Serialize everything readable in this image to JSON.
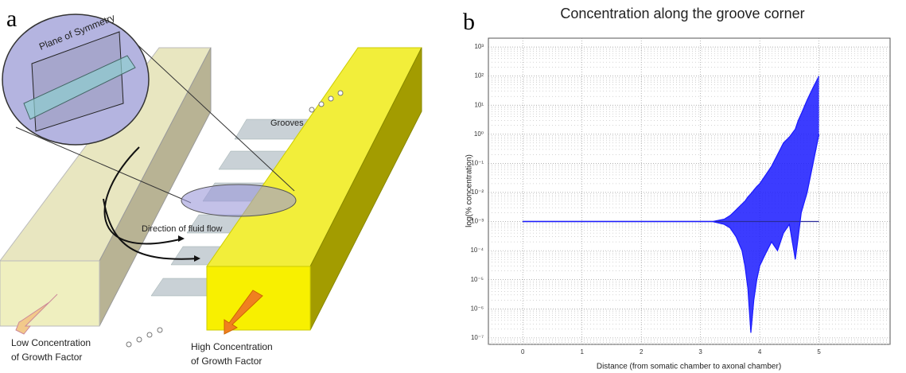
{
  "panel_a": {
    "label": "a",
    "plane_label": "Plane of Symmetry",
    "grooves_label": "Grooves",
    "flow_label": "Direction of fluid flow",
    "low_label": [
      "Low Concentration",
      "of Growth Factor"
    ],
    "high_label": [
      "High Concentration",
      "of Growth Factor"
    ]
  },
  "chart_data": {
    "type": "line",
    "label": "b",
    "title": "Concentration along the groove corner",
    "x_label": "Distance (from somatic chamber to axonal chamber)",
    "y_label": "log(% concentration)",
    "x": [
      0,
      1,
      2,
      3,
      3.2,
      3.4,
      3.5,
      3.6,
      3.7,
      3.75,
      3.8,
      3.85,
      3.9,
      3.95,
      4.0,
      4.1,
      4.2,
      4.3,
      4.4,
      4.5,
      4.6,
      4.65,
      4.7,
      4.8,
      4.9,
      5.0
    ],
    "series": [
      {
        "color": "#2a2a9a",
        "values": [
          0.001,
          0.001,
          0.001,
          0.001,
          0.001,
          0.001,
          0.001,
          0.001,
          0.001,
          0.001,
          0.001,
          0.001,
          0.001,
          0.001,
          0.001,
          0.001,
          0.001,
          0.001,
          0.001,
          0.001,
          0.001,
          0.001,
          0.001,
          0.001,
          0.001,
          0.001
        ]
      },
      {
        "color": "#1a1aff",
        "values": [
          0.001,
          0.001,
          0.001,
          0.001,
          0.001,
          0.0012,
          0.0016,
          0.0025,
          0.004,
          0.005,
          0.007,
          0.009,
          0.012,
          0.016,
          0.02,
          0.04,
          0.08,
          0.2,
          0.5,
          0.8,
          1.5,
          3,
          5,
          15,
          40,
          100
        ]
      },
      {
        "color": "#1a1aff",
        "values": [
          0.001,
          0.001,
          0.001,
          0.001,
          0.001,
          0.0008,
          0.0006,
          0.0003,
          0.0001,
          3e-05,
          5e-06,
          1.5e-07,
          2e-06,
          1e-05,
          3e-05,
          8e-05,
          0.0002,
          0.0001,
          0.0004,
          0.0008,
          5e-05,
          0.0003,
          0.002,
          0.01,
          0.1,
          1
        ]
      }
    ],
    "fill_between": [
      1,
      2
    ],
    "xlim": [
      -0.58,
      6.2
    ],
    "xticks": [
      0,
      1,
      2,
      3,
      4,
      5
    ],
    "ylim": [
      6e-08,
      2000
    ],
    "log_y": true,
    "yticks": [
      {
        "value": 1000,
        "label": "10³"
      },
      {
        "value": 100,
        "label": "10²"
      },
      {
        "value": 10,
        "label": "10¹"
      },
      {
        "value": 1,
        "label": "10⁰"
      },
      {
        "value": 0.1,
        "label": "10⁻¹"
      },
      {
        "value": 0.01,
        "label": "10⁻²"
      },
      {
        "value": 0.001,
        "label": "10⁻³"
      },
      {
        "value": 0.0001,
        "label": "10⁻⁴"
      },
      {
        "value": 1e-05,
        "label": "10⁻⁵"
      },
      {
        "value": 1e-06,
        "label": "10⁻⁶"
      },
      {
        "value": 1e-07,
        "label": "10⁻⁷"
      }
    ],
    "grid": true,
    "minor_grid": true
  }
}
